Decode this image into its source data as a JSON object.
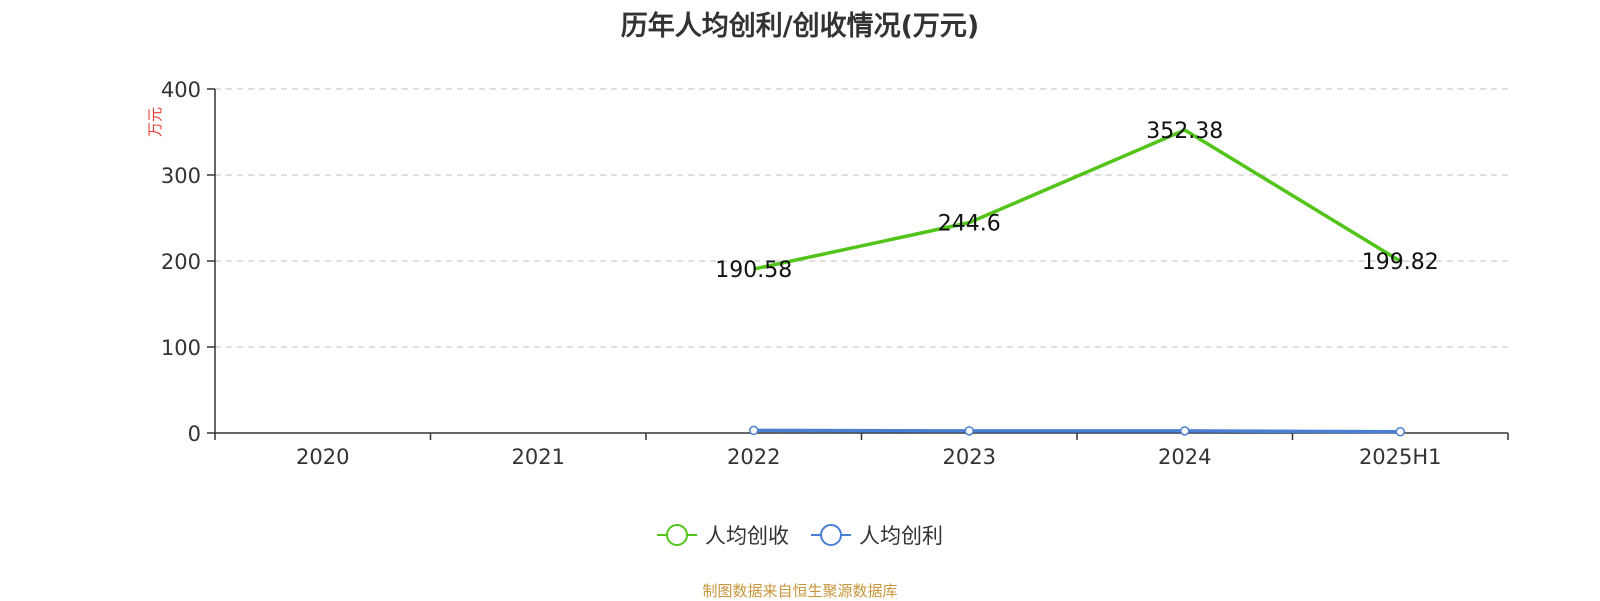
{
  "chart_data": {
    "type": "line",
    "title": "历年人均创利/创收情况(万元)",
    "ylabel": "万元",
    "xlabel": "",
    "categories": [
      "2020",
      "2021",
      "2022",
      "2023",
      "2024",
      "2025H1"
    ],
    "ylim": [
      0,
      400
    ],
    "yticks": [
      0,
      100,
      200,
      300,
      400
    ],
    "grid": true,
    "legend_position": "bottom",
    "series": [
      {
        "name": "人均创收",
        "color": "#52c41a",
        "values": [
          null,
          null,
          190.58,
          244.6,
          352.38,
          199.82
        ],
        "labels": [
          "",
          "",
          "190.58",
          "244.6",
          "352.38",
          "199.82"
        ]
      },
      {
        "name": "人均创利",
        "color": "#4a7fd4",
        "values": [
          null,
          null,
          3,
          2.5,
          2.5,
          1.5
        ],
        "labels": [
          "",
          "",
          "",
          "",
          "",
          ""
        ]
      }
    ]
  },
  "source": "制图数据来自恒生聚源数据库"
}
